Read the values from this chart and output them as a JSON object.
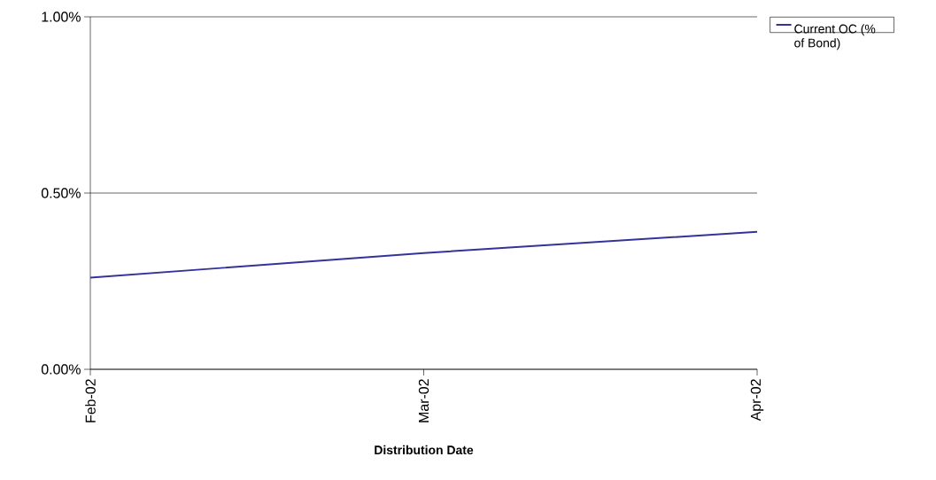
{
  "chart_data": {
    "type": "line",
    "xlabel": "Distribution Date",
    "categories": [
      "Feb-02",
      "Mar-02",
      "Apr-02"
    ],
    "series": [
      {
        "name": "Current OC (% of Bond)",
        "color": "#333399",
        "values": [
          0.26,
          0.33,
          0.39
        ]
      }
    ],
    "ylim": [
      0,
      1
    ],
    "yticks": [
      {
        "value": 0,
        "label": "0.00%"
      },
      {
        "value": 0.5,
        "label": "0.50%"
      },
      {
        "value": 1,
        "label": "1.00%"
      }
    ],
    "grid": "y",
    "legend": "top right",
    "marker": "none",
    "line_style": "solid"
  }
}
